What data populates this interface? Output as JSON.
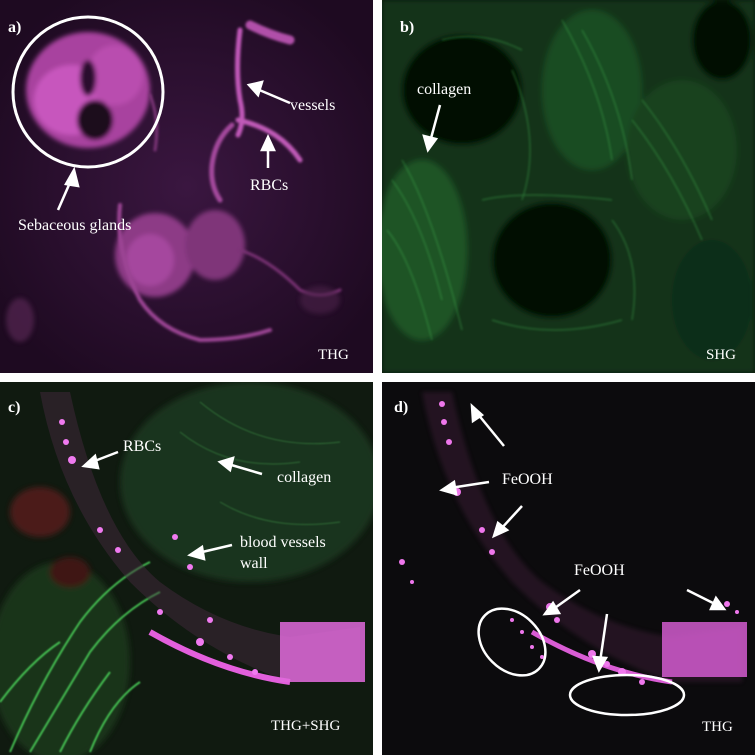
{
  "panels": {
    "a": {
      "label": "a)",
      "modality": "THG",
      "annotations": {
        "glands": "Sebaceous glands",
        "vessels": "vessels",
        "rbcs": "RBCs"
      },
      "color": "#d85ad2"
    },
    "b": {
      "label": "b)",
      "modality": "SHG",
      "annotations": {
        "collagen": "collagen"
      },
      "color": "#3fbf52"
    },
    "c": {
      "label": "c)",
      "modality": "THG+SHG",
      "annotations": {
        "rbcs": "RBCs",
        "collagen": "collagen",
        "vessel_wall_1": "blood vessels",
        "vessel_wall_2": "wall"
      }
    },
    "d": {
      "label": "d)",
      "modality": "THG",
      "annotations": {
        "feooh_1": "FeOOH",
        "feooh_2": "FeOOH"
      }
    }
  }
}
